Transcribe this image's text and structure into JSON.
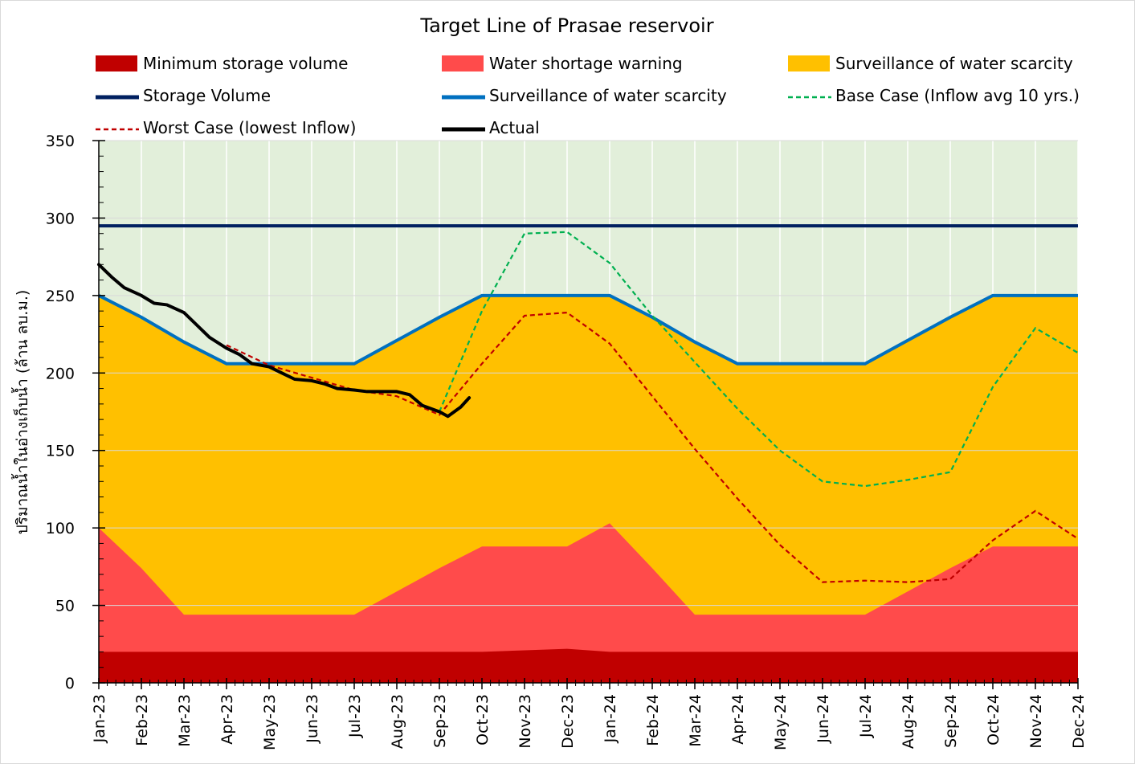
{
  "chart_data": {
    "type": "area",
    "title": "Target Line of Prasae reservoir",
    "ylabel": "ปริมาณน้ำในอ่างเก็บน้ำ (ล้าน ลบ.ม.)",
    "xlabel": "",
    "ylim": [
      0,
      350
    ],
    "yticks": [
      0,
      50,
      100,
      150,
      200,
      250,
      300,
      350
    ],
    "categories": [
      "Jan-23",
      "Feb-23",
      "Mar-23",
      "Apr-23",
      "May-23",
      "Jun-23",
      "Jul-23",
      "Aug-23",
      "Sep-23",
      "Oct-23",
      "Nov-23",
      "Dec-23",
      "Jan-24",
      "Feb-24",
      "Mar-24",
      "Apr-24",
      "May-24",
      "Jun-24",
      "Jul-24",
      "Aug-24",
      "Sep-24",
      "Oct-24",
      "Nov-24",
      "Dec-24"
    ],
    "grid": true,
    "legend_position": "top",
    "colors": {
      "background_zone": "#e2efda",
      "minimum": "#c00000",
      "shortage": "#ff4b4b",
      "surveillance_fill": "#ffc000",
      "storage_line": "#002060",
      "surveillance_line": "#0070c0",
      "base_case": "#00b050",
      "worst_case": "#c00000",
      "actual": "#000000"
    },
    "series": {
      "minimum": {
        "name": "Minimum storage volume",
        "kind": "area",
        "values": [
          20,
          20,
          20,
          20,
          20,
          20,
          20,
          20,
          20,
          20,
          21,
          22,
          20,
          20,
          20,
          20,
          20,
          20,
          20,
          20,
          20,
          20,
          20,
          20
        ]
      },
      "shortage": {
        "name": "Water shortage warning",
        "kind": "area",
        "values": [
          100,
          74,
          44,
          44,
          44,
          44,
          44,
          59,
          74,
          88,
          88,
          88,
          103,
          74,
          44,
          44,
          44,
          44,
          44,
          59,
          74,
          88,
          88,
          88
        ]
      },
      "surveillance_area": {
        "name": "Surveillance of water scarcity",
        "kind": "area",
        "values": [
          250,
          236,
          220,
          206,
          206,
          206,
          206,
          221,
          236,
          250,
          250,
          250,
          250,
          236,
          220,
          206,
          206,
          206,
          206,
          221,
          236,
          250,
          250,
          250
        ]
      },
      "storage_volume": {
        "name": "Storage Volume",
        "kind": "line",
        "values": [
          295,
          295,
          295,
          295,
          295,
          295,
          295,
          295,
          295,
          295,
          295,
          295,
          295,
          295,
          295,
          295,
          295,
          295,
          295,
          295,
          295,
          295,
          295,
          295
        ]
      },
      "surveillance_line": {
        "name": "Surveillance of water scarcity",
        "kind": "line",
        "values": [
          250,
          236,
          220,
          206,
          206,
          206,
          206,
          221,
          236,
          250,
          250,
          250,
          250,
          236,
          220,
          206,
          206,
          206,
          206,
          221,
          236,
          250,
          250,
          250
        ]
      },
      "base_case": {
        "name": "Base Case (Inflow avg 10 yrs.)",
        "kind": "dashed-line",
        "x_start": 8,
        "values": [
          175,
          240,
          290,
          291,
          271,
          237,
          207,
          177,
          150,
          130,
          127,
          131,
          136,
          191,
          229,
          213
        ]
      },
      "worst_case": {
        "name": "Worst Case (lowest Inflow)",
        "kind": "dashed-line",
        "x": [
          3,
          4,
          5,
          6,
          7,
          8,
          9,
          10,
          11,
          12,
          13,
          14,
          15,
          16,
          17,
          18,
          19,
          20,
          21,
          22,
          23
        ],
        "values": [
          218,
          205,
          197,
          189,
          185,
          173,
          206,
          237,
          239,
          219,
          185,
          151,
          119,
          89,
          65,
          66,
          65,
          67,
          92,
          111,
          93
        ],
        "note_x_is_month_index": true
      },
      "actual": {
        "name": "Actual",
        "kind": "line",
        "x": [
          0,
          0.3,
          0.6,
          1,
          1.3,
          1.6,
          2,
          2.3,
          2.6,
          3,
          3.3,
          3.6,
          4,
          4.3,
          4.6,
          5,
          5.3,
          5.6,
          6,
          6.3,
          6.6,
          7,
          7.3,
          7.6,
          8,
          8.2,
          8.35,
          8.5,
          8.7
        ],
        "values": [
          270,
          262,
          255,
          250,
          245,
          244,
          239,
          231,
          223,
          216,
          212,
          206,
          204,
          200,
          196,
          195,
          193,
          190,
          189,
          188,
          188,
          188,
          186,
          179,
          175,
          172,
          175,
          178,
          184
        ]
      }
    }
  }
}
